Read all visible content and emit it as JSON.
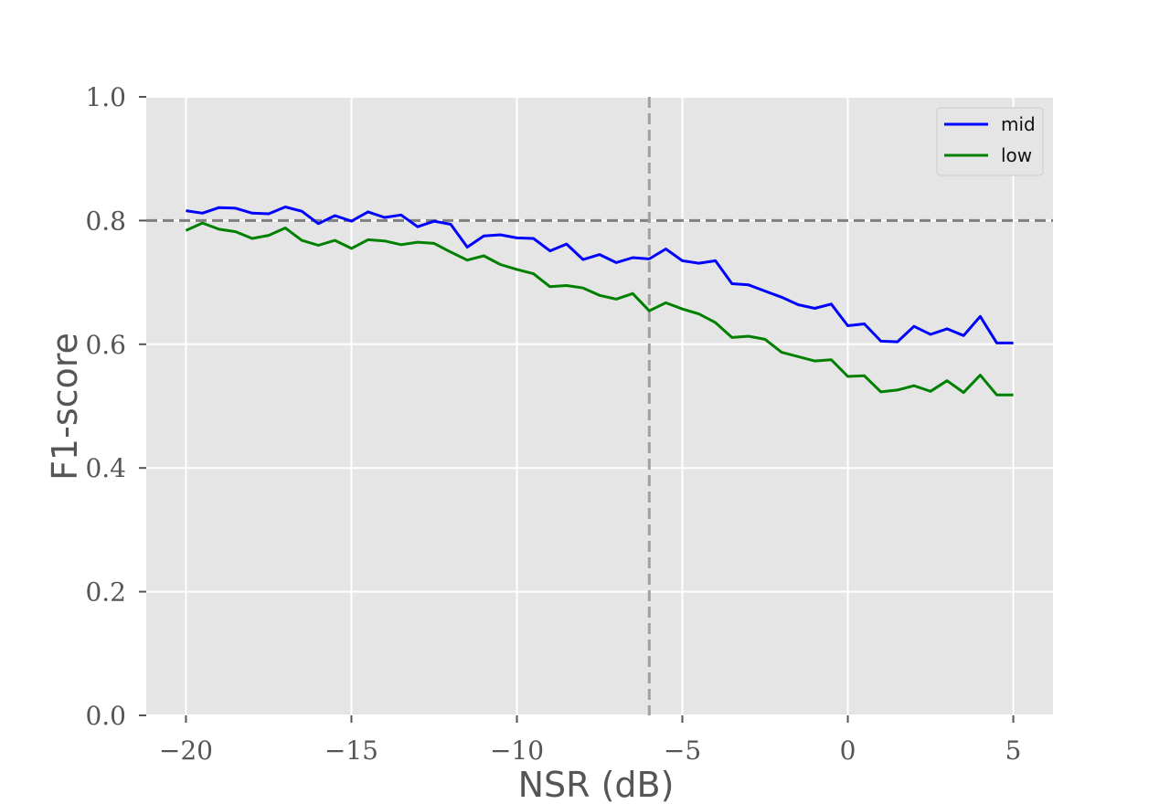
{
  "chart_data": {
    "type": "line",
    "title": "",
    "xlabel": "NSR (dB)",
    "ylabel": "F1-score",
    "xlim": [
      -21.2,
      6.2
    ],
    "ylim": [
      0.0,
      1.0
    ],
    "xticks": [
      -20,
      -15,
      -10,
      -5,
      0,
      5
    ],
    "xtick_labels": [
      "−20",
      "−15",
      "−10",
      "−5",
      "0",
      "5"
    ],
    "yticks": [
      0.0,
      0.2,
      0.4,
      0.6,
      0.8,
      1.0
    ],
    "ytick_labels": [
      "0.0",
      "0.2",
      "0.4",
      "0.6",
      "0.8",
      "1.0"
    ],
    "grid": true,
    "background": "#e5e5e5",
    "legend_position": "top-right",
    "x": [
      -20,
      -19.5,
      -19,
      -18.5,
      -18,
      -17.5,
      -17,
      -16.5,
      -16,
      -15.5,
      -15,
      -14.5,
      -14,
      -13.5,
      -13,
      -12.5,
      -12,
      -11.5,
      -11,
      -10.5,
      -10,
      -9.5,
      -9,
      -8.5,
      -8,
      -7.5,
      -7,
      -6.5,
      -6,
      -5.5,
      -5,
      -4.5,
      -4,
      -3.5,
      -3,
      -2.5,
      -2,
      -1.5,
      -1,
      -0.5,
      0,
      0.5,
      1,
      1.5,
      2,
      2.5,
      3,
      3.5,
      4,
      4.5,
      5
    ],
    "series": [
      {
        "name": "mid",
        "color": "#0000ff",
        "values": [
          0.816,
          0.812,
          0.821,
          0.82,
          0.812,
          0.811,
          0.822,
          0.815,
          0.795,
          0.808,
          0.799,
          0.814,
          0.805,
          0.809,
          0.79,
          0.799,
          0.794,
          0.757,
          0.775,
          0.777,
          0.772,
          0.771,
          0.751,
          0.762,
          0.737,
          0.745,
          0.732,
          0.74,
          0.738,
          0.754,
          0.735,
          0.731,
          0.735,
          0.698,
          0.696,
          0.686,
          0.676,
          0.664,
          0.658,
          0.665,
          0.63,
          0.633,
          0.605,
          0.604,
          0.629,
          0.616,
          0.625,
          0.614,
          0.645,
          0.602,
          0.602
        ]
      },
      {
        "name": "low",
        "color": "#008000",
        "values": [
          0.784,
          0.796,
          0.786,
          0.782,
          0.771,
          0.776,
          0.788,
          0.768,
          0.76,
          0.768,
          0.755,
          0.769,
          0.767,
          0.761,
          0.765,
          0.763,
          0.749,
          0.736,
          0.743,
          0.729,
          0.721,
          0.714,
          0.693,
          0.695,
          0.691,
          0.679,
          0.673,
          0.682,
          0.654,
          0.667,
          0.657,
          0.649,
          0.635,
          0.611,
          0.613,
          0.608,
          0.587,
          0.58,
          0.573,
          0.575,
          0.548,
          0.549,
          0.523,
          0.526,
          0.533,
          0.524,
          0.541,
          0.522,
          0.55,
          0.518,
          0.518
        ]
      }
    ],
    "reference_lines": [
      {
        "orientation": "horizontal",
        "value": 0.8,
        "color": "#808080",
        "dashed": true
      },
      {
        "orientation": "vertical",
        "value": -6,
        "color": "#a0a0a0",
        "dashed": true
      }
    ]
  }
}
